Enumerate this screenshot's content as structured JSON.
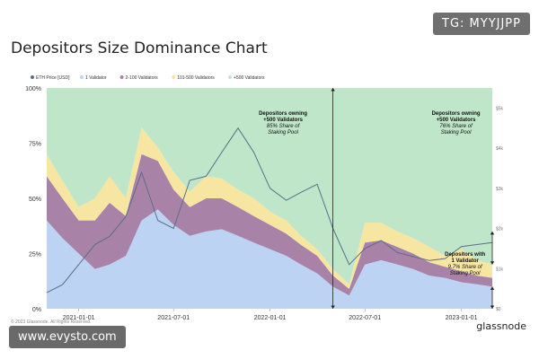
{
  "header": {
    "tag": "TG: MYYJJPP",
    "title": "Depositors Size Dominance Chart"
  },
  "footer": {
    "watermark": "www.evysto.com",
    "logo": "glassnode",
    "copyright": "© 2023 Glassnode. All Rights Reserved."
  },
  "colors": {
    "validator_1": "#bcd3f3",
    "validator_2_100": "#a982a8",
    "validator_101_500": "#f6e6a2",
    "validator_500_plus": "#bfe6c8",
    "eth_price": "#5a6e8a",
    "arrow": "#222222"
  },
  "chart_data": {
    "type": "area",
    "stacked": true,
    "x": [
      "2020-11-01",
      "2020-12-01",
      "2021-01-01",
      "2021-02-01",
      "2021-03-01",
      "2021-04-01",
      "2021-05-01",
      "2021-06-01",
      "2021-07-01",
      "2021-08-01",
      "2021-09-01",
      "2021-10-01",
      "2021-11-01",
      "2021-12-01",
      "2022-01-01",
      "2022-02-01",
      "2022-03-01",
      "2022-04-01",
      "2022-05-01",
      "2022-06-01",
      "2022-07-01",
      "2022-08-01",
      "2022-09-01",
      "2022-10-01",
      "2022-11-01",
      "2022-12-01",
      "2023-01-01",
      "2023-02-01",
      "2023-03-01"
    ],
    "series": [
      {
        "name": "1 Validator",
        "values": [
          40,
          32,
          25,
          18,
          20,
          24,
          40,
          45,
          38,
          33,
          35,
          36,
          33,
          30,
          27,
          24,
          20,
          16,
          10,
          6,
          20,
          22,
          20,
          18,
          15,
          14,
          12,
          11,
          10
        ]
      },
      {
        "name": "2-100 Validators",
        "values": [
          20,
          18,
          15,
          22,
          28,
          18,
          30,
          22,
          16,
          13,
          15,
          14,
          13,
          12,
          11,
          10,
          9,
          8,
          5,
          3,
          10,
          9,
          8,
          7,
          6,
          5,
          5,
          4,
          4
        ]
      },
      {
        "name": "101-500 Validators",
        "values": [
          10,
          8,
          6,
          10,
          12,
          8,
          12,
          6,
          8,
          7,
          10,
          9,
          8,
          8,
          6,
          6,
          4,
          3,
          3,
          2,
          9,
          8,
          7,
          7,
          7,
          5,
          10,
          7,
          6
        ]
      },
      {
        "name": "+500 Validators",
        "values": [
          30,
          42,
          54,
          50,
          40,
          50,
          18,
          27,
          38,
          47,
          40,
          41,
          46,
          50,
          56,
          60,
          67,
          73,
          82,
          89,
          61,
          61,
          65,
          68,
          72,
          76,
          73,
          78,
          80
        ]
      }
    ],
    "line_series": {
      "name": "ETH Price [USD]",
      "axis": "right",
      "values": [
        400,
        600,
        1100,
        1600,
        1800,
        2300,
        3400,
        2200,
        2000,
        3200,
        3300,
        3900,
        4500,
        3900,
        3000,
        2700,
        2900,
        3100,
        2000,
        1100,
        1500,
        1700,
        1400,
        1300,
        1200,
        1250,
        1550,
        1600,
        1650
      ]
    },
    "legend": [
      "ETH Price [USD]",
      "1 Validator",
      "2-100 Validators",
      "101-500 Validators",
      "+500 Validators"
    ],
    "legend_position": "top-left",
    "x_ticks": [
      "2021-01-01",
      "2021-07-01",
      "2022-01-01",
      "2022-07-01",
      "2023-01-01"
    ],
    "y_ticks_left": [
      "0%",
      "25%",
      "50%",
      "75%",
      "100%"
    ],
    "ylim_left": [
      0,
      100
    ],
    "y_ticks_right": [
      "$0",
      "$1k",
      "$2k",
      "$3k",
      "$4k",
      "$5k"
    ],
    "ylim_right": [
      0,
      5500
    ],
    "annotations": [
      {
        "x": "2022-04-01",
        "bold": "Depositors owning +500 Validators",
        "italic": "85% Share of Staking Pool"
      },
      {
        "x": "2023-01-01",
        "bold": "Depositors owning +500 Validators",
        "italic": "76% Share of Staking Pool"
      },
      {
        "x": "2023-02-01",
        "bold": "Depositors with 1 Validator",
        "italic": "9.7% Share of Staking Pool"
      }
    ],
    "arrows": [
      {
        "x": "2022-05-01",
        "from": 0,
        "to": 100
      },
      {
        "x": "2023-03-01",
        "from": 0,
        "to": 10
      },
      {
        "x": "2023-03-01",
        "from": 20,
        "to": 35
      }
    ]
  }
}
